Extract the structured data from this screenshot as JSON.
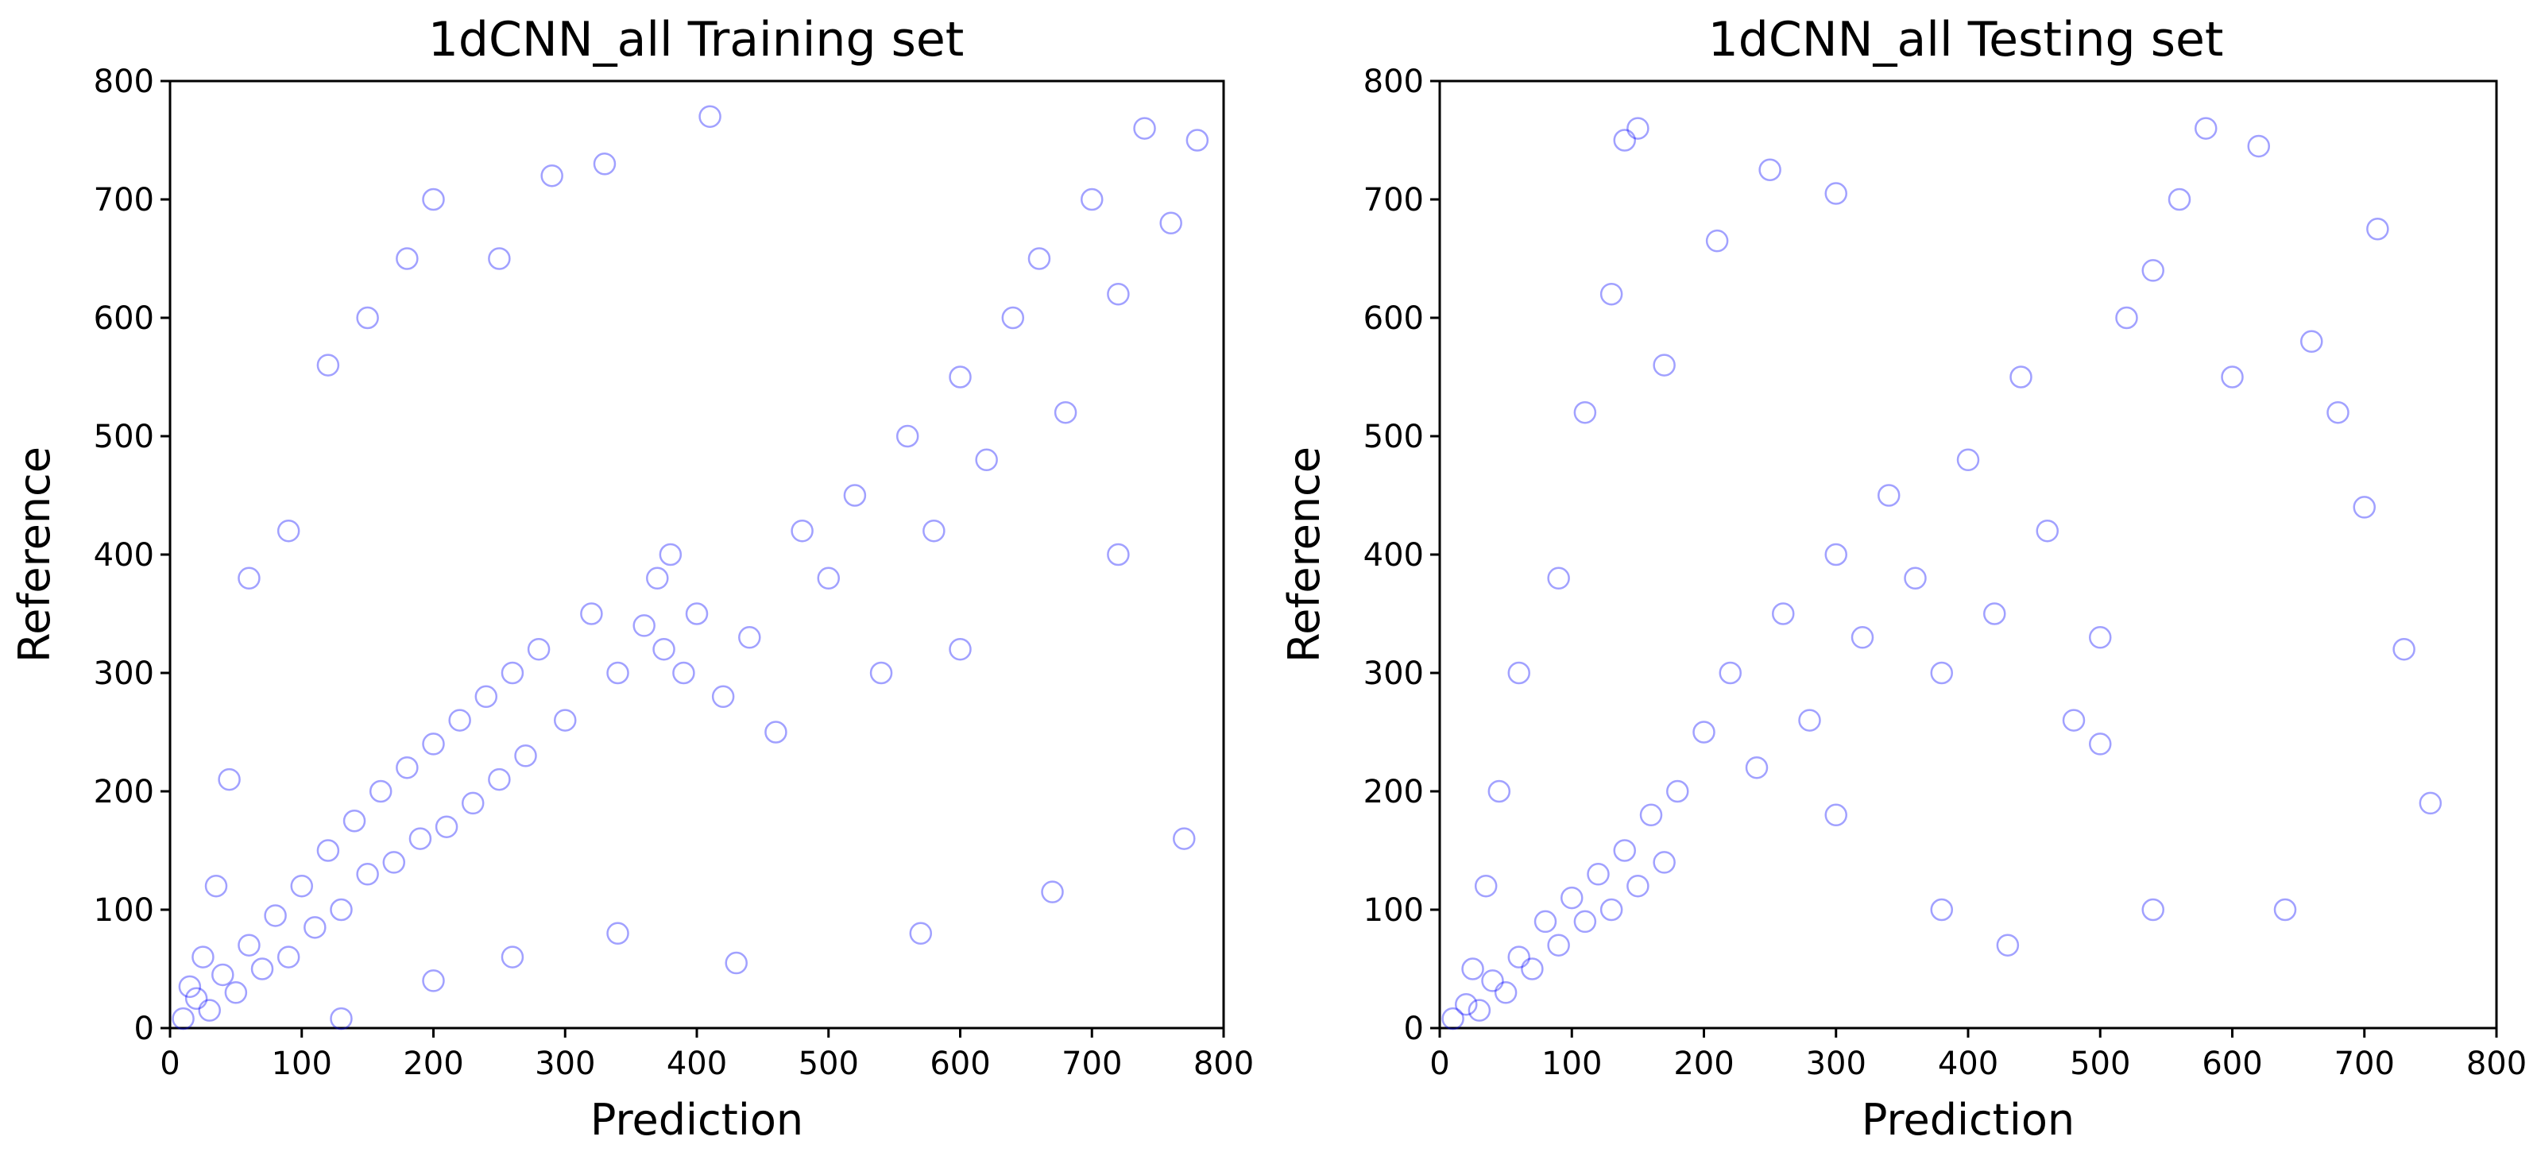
{
  "figure": {
    "panels": [
      {
        "title": "1dCNN_all Training set",
        "xlabel": "Prediction",
        "ylabel": "Reference"
      },
      {
        "title": "1dCNN_all Testing set",
        "xlabel": "Prediction",
        "ylabel": "Reference"
      }
    ]
  },
  "chart_data": [
    {
      "type": "scatter",
      "title": "1dCNN_all Training set",
      "xlabel": "Prediction",
      "ylabel": "Reference",
      "xlim": [
        0,
        800
      ],
      "ylim": [
        0,
        800
      ],
      "xticks": [
        0,
        100,
        200,
        300,
        400,
        500,
        600,
        700,
        800
      ],
      "yticks": [
        0,
        100,
        200,
        300,
        400,
        500,
        600,
        700,
        800
      ],
      "marker": "open circle",
      "marker_color": "#0000ff",
      "marker_alpha": 0.12,
      "grid": false,
      "series": [
        {
          "points_summary": "dense cloud concentrated between 0-250 prediction and 0-300 reference; secondary cluster near prediction 360-380, reference 300-400; sparse points extending to ~790 on both axes",
          "points": [
            [
              10,
              8
            ],
            [
              20,
              25
            ],
            [
              30,
              15
            ],
            [
              40,
              45
            ],
            [
              50,
              30
            ],
            [
              60,
              70
            ],
            [
              70,
              50
            ],
            [
              80,
              95
            ],
            [
              90,
              60
            ],
            [
              100,
              120
            ],
            [
              110,
              85
            ],
            [
              120,
              150
            ],
            [
              130,
              100
            ],
            [
              140,
              175
            ],
            [
              150,
              130
            ],
            [
              160,
              200
            ],
            [
              170,
              140
            ],
            [
              180,
              220
            ],
            [
              190,
              160
            ],
            [
              200,
              240
            ],
            [
              210,
              170
            ],
            [
              220,
              260
            ],
            [
              230,
              190
            ],
            [
              240,
              280
            ],
            [
              250,
              210
            ],
            [
              260,
              300
            ],
            [
              270,
              230
            ],
            [
              280,
              320
            ],
            [
              300,
              260
            ],
            [
              320,
              350
            ],
            [
              340,
              300
            ],
            [
              360,
              340
            ],
            [
              370,
              380
            ],
            [
              375,
              320
            ],
            [
              380,
              400
            ],
            [
              390,
              300
            ],
            [
              400,
              350
            ],
            [
              420,
              280
            ],
            [
              440,
              330
            ],
            [
              460,
              250
            ],
            [
              480,
              420
            ],
            [
              500,
              380
            ],
            [
              520,
              450
            ],
            [
              540,
              300
            ],
            [
              560,
              500
            ],
            [
              580,
              420
            ],
            [
              600,
              550
            ],
            [
              620,
              480
            ],
            [
              640,
              600
            ],
            [
              660,
              650
            ],
            [
              680,
              520
            ],
            [
              700,
              700
            ],
            [
              720,
              620
            ],
            [
              740,
              760
            ],
            [
              760,
              680
            ],
            [
              780,
              750
            ],
            [
              120,
              560
            ],
            [
              150,
              600
            ],
            [
              200,
              700
            ],
            [
              250,
              650
            ],
            [
              330,
              730
            ],
            [
              410,
              770
            ],
            [
              290,
              720
            ],
            [
              180,
              650
            ],
            [
              90,
              420
            ],
            [
              60,
              380
            ],
            [
              45,
              210
            ],
            [
              35,
              120
            ],
            [
              25,
              60
            ],
            [
              15,
              35
            ],
            [
              130,
              8
            ],
            [
              200,
              40
            ],
            [
              260,
              60
            ],
            [
              340,
              80
            ],
            [
              430,
              55
            ],
            [
              570,
              80
            ],
            [
              670,
              115
            ],
            [
              770,
              160
            ],
            [
              600,
              320
            ],
            [
              720,
              400
            ]
          ]
        }
      ]
    },
    {
      "type": "scatter",
      "title": "1dCNN_all Testing set",
      "xlabel": "Prediction",
      "ylabel": "Reference",
      "xlim": [
        0,
        800
      ],
      "ylim": [
        0,
        800
      ],
      "xticks": [
        0,
        100,
        200,
        300,
        400,
        500,
        600,
        700,
        800
      ],
      "yticks": [
        0,
        100,
        200,
        300,
        400,
        500,
        600,
        700,
        800
      ],
      "marker": "open circle",
      "marker_color": "#0000ff",
      "marker_alpha": 0.12,
      "grid": false,
      "series": [
        {
          "points_summary": "dense cloud between 0-150 prediction and 0-200 reference; sparser spread out to prediction ~750 and reference ~760",
          "points": [
            [
              10,
              8
            ],
            [
              20,
              20
            ],
            [
              30,
              15
            ],
            [
              40,
              40
            ],
            [
              50,
              30
            ],
            [
              60,
              60
            ],
            [
              70,
              50
            ],
            [
              80,
              90
            ],
            [
              90,
              70
            ],
            [
              100,
              110
            ],
            [
              110,
              90
            ],
            [
              120,
              130
            ],
            [
              130,
              100
            ],
            [
              140,
              150
            ],
            [
              150,
              120
            ],
            [
              160,
              180
            ],
            [
              170,
              140
            ],
            [
              180,
              200
            ],
            [
              200,
              250
            ],
            [
              220,
              300
            ],
            [
              240,
              220
            ],
            [
              260,
              350
            ],
            [
              280,
              260
            ],
            [
              300,
              400
            ],
            [
              320,
              330
            ],
            [
              340,
              450
            ],
            [
              360,
              380
            ],
            [
              380,
              300
            ],
            [
              400,
              480
            ],
            [
              420,
              350
            ],
            [
              440,
              550
            ],
            [
              460,
              420
            ],
            [
              480,
              260
            ],
            [
              500,
              330
            ],
            [
              520,
              600
            ],
            [
              540,
              640
            ],
            [
              560,
              700
            ],
            [
              580,
              760
            ],
            [
              600,
              550
            ],
            [
              620,
              745
            ],
            [
              640,
              100
            ],
            [
              660,
              580
            ],
            [
              680,
              520
            ],
            [
              700,
              440
            ],
            [
              710,
              675
            ],
            [
              730,
              320
            ],
            [
              750,
              190
            ],
            [
              150,
              760
            ],
            [
              140,
              750
            ],
            [
              250,
              725
            ],
            [
              300,
              705
            ],
            [
              210,
              665
            ],
            [
              170,
              560
            ],
            [
              130,
              620
            ],
            [
              110,
              520
            ],
            [
              90,
              380
            ],
            [
              60,
              300
            ],
            [
              45,
              200
            ],
            [
              35,
              120
            ],
            [
              25,
              50
            ],
            [
              300,
              180
            ],
            [
              380,
              100
            ],
            [
              430,
              70
            ],
            [
              500,
              240
            ],
            [
              540,
              100
            ]
          ]
        }
      ]
    }
  ]
}
